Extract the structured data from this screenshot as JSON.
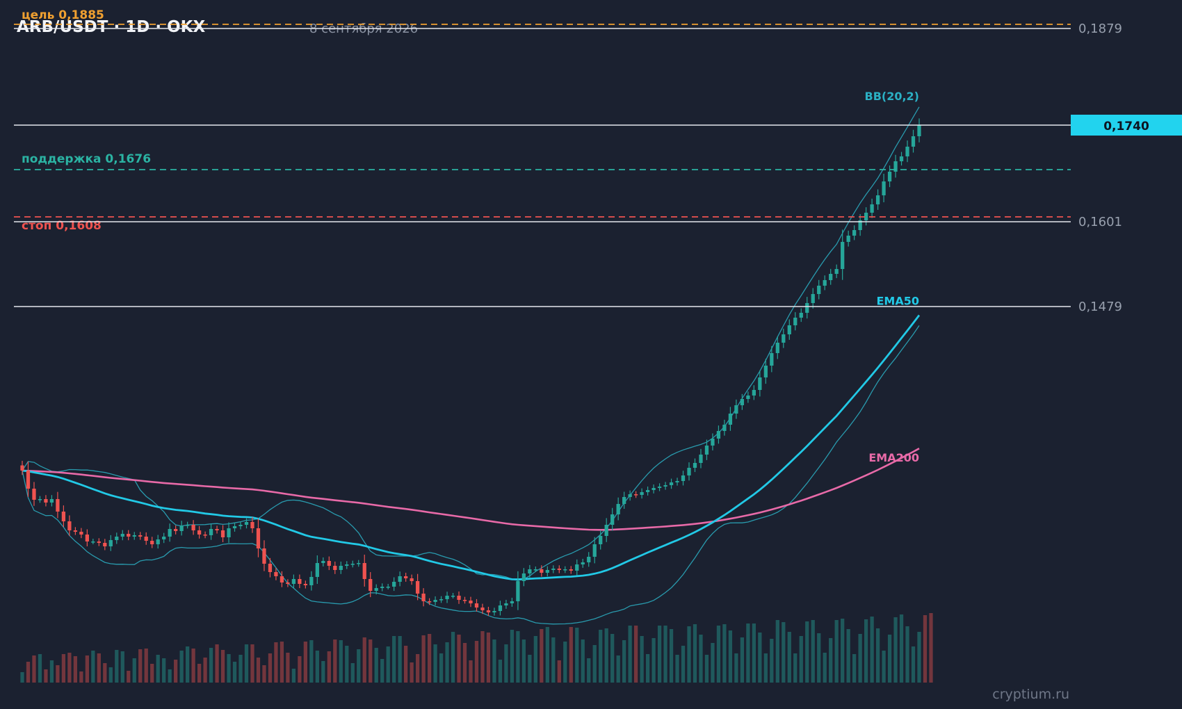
{
  "header": {
    "title": "ARB/USDT · 1D · OKX",
    "date": "8 сентября 2026"
  },
  "watermark": "cryptium.ru",
  "colors": {
    "background": "#1b2130",
    "up": "#26a69a",
    "down": "#ef5350",
    "ema50": "#22c9e6",
    "ema200": "#e86aa8",
    "bollinger": "#2bb0c4",
    "target": "#f0a030",
    "support": "#2bb3a3",
    "stop": "#ef5350",
    "level": "#e6e8ee",
    "price_tag_bg": "#22d3ee"
  },
  "chart_data": {
    "type": "candlestick",
    "price_axis": {
      "min": 0.102,
      "max": 0.19
    },
    "current_price": "0,1740",
    "axis_labels": [
      "0,1879",
      "0,1601",
      "0,1479"
    ],
    "levels": [
      {
        "kind": "target",
        "label": "цель 0,1885",
        "value": 0.1885
      },
      {
        "kind": "horizontal",
        "value": 0.1879,
        "label": "0,1879"
      },
      {
        "kind": "current",
        "value": 0.174
      },
      {
        "kind": "support",
        "label": "поддержка 0,1676",
        "value": 0.1676
      },
      {
        "kind": "stop",
        "label": "стоп 0,1608",
        "value": 0.1608
      },
      {
        "kind": "horizontal",
        "value": 0.1601,
        "label": "0,1601"
      },
      {
        "kind": "horizontal",
        "value": 0.1479,
        "label": "0,1479"
      }
    ],
    "indicators": {
      "bb": "BB(20,2)",
      "ema50": "EMA50",
      "ema200": "EMA200"
    },
    "closes": [
      0.1243,
      0.1217,
      0.1201,
      0.1202,
      0.1197,
      0.1202,
      0.1184,
      0.117,
      0.1157,
      0.1155,
      0.1151,
      0.1141,
      0.1141,
      0.1139,
      0.1134,
      0.1143,
      0.1148,
      0.1152,
      0.1148,
      0.115,
      0.1148,
      0.1142,
      0.1137,
      0.1144,
      0.1148,
      0.1159,
      0.1156,
      0.1164,
      0.1165,
      0.1157,
      0.1151,
      0.115,
      0.1159,
      0.1157,
      0.1147,
      0.116,
      0.1163,
      0.1165,
      0.1169,
      0.116,
      0.1131,
      0.1109,
      0.1097,
      0.1091,
      0.1082,
      0.108,
      0.1087,
      0.108,
      0.1078,
      0.109,
      0.111,
      0.1113,
      0.1106,
      0.11,
      0.1106,
      0.1108,
      0.1109,
      0.111,
      0.1087,
      0.107,
      0.1074,
      0.1076,
      0.1076,
      0.1083,
      0.1091,
      0.1088,
      0.1084,
      0.1066,
      0.1055,
      0.1054,
      0.1057,
      0.1058,
      0.1063,
      0.1063,
      0.1057,
      0.1056,
      0.1052,
      0.1046,
      0.1042,
      0.1039,
      0.1041,
      0.1049,
      0.1052,
      0.1055,
      0.1084,
      0.1095,
      0.1101,
      0.1101,
      0.1096,
      0.11,
      0.1102,
      0.11,
      0.1101,
      0.1099,
      0.1108,
      0.1111,
      0.1119,
      0.1137,
      0.1149,
      0.1165,
      0.118,
      0.1195,
      0.1205,
      0.1209,
      0.1208,
      0.1212,
      0.1215,
      0.1218,
      0.122,
      0.1222,
      0.1226,
      0.1228,
      0.1236,
      0.1247,
      0.1254,
      0.1266,
      0.1279,
      0.1289,
      0.13,
      0.1309,
      0.1325,
      0.1337,
      0.1346,
      0.1351,
      0.1359,
      0.1377,
      0.1394,
      0.1412,
      0.1427,
      0.1439,
      0.1452,
      0.1463,
      0.147,
      0.1484,
      0.1497,
      0.1509,
      0.1517,
      0.1526,
      0.1533,
      0.1572,
      0.1581,
      0.1589,
      0.1603,
      0.1614,
      0.1626,
      0.1639,
      0.1659,
      0.1673,
      0.1688,
      0.1695,
      0.1709,
      0.1724,
      0.174
    ],
    "volumes": [
      0.15,
      0.3,
      0.39,
      0.41,
      0.19,
      0.32,
      0.25,
      0.41,
      0.43,
      0.38,
      0.16,
      0.39,
      0.46,
      0.42,
      0.28,
      0.22,
      0.47,
      0.45,
      0.17,
      0.35,
      0.48,
      0.49,
      0.27,
      0.4,
      0.35,
      0.19,
      0.33,
      0.46,
      0.52,
      0.49,
      0.27,
      0.36,
      0.5,
      0.55,
      0.47,
      0.41,
      0.3,
      0.4,
      0.55,
      0.55,
      0.36,
      0.25,
      0.42,
      0.58,
      0.59,
      0.43,
      0.2,
      0.38,
      0.59,
      0.61,
      0.46,
      0.31,
      0.45,
      0.62,
      0.61,
      0.53,
      0.28,
      0.48,
      0.65,
      0.62,
      0.5,
      0.34,
      0.52,
      0.67,
      0.67,
      0.53,
      0.29,
      0.41,
      0.68,
      0.7,
      0.55,
      0.42,
      0.58,
      0.73,
      0.69,
      0.57,
      0.32,
      0.6,
      0.74,
      0.72,
      0.62,
      0.33,
      0.55,
      0.76,
      0.74,
      0.62,
      0.4,
      0.67,
      0.77,
      0.8,
      0.65,
      0.32,
      0.59,
      0.8,
      0.79,
      0.62,
      0.35,
      0.54,
      0.76,
      0.78,
      0.7,
      0.39,
      0.61,
      0.82,
      0.82,
      0.67,
      0.41,
      0.64,
      0.82,
      0.82,
      0.77,
      0.4,
      0.53,
      0.81,
      0.84,
      0.69,
      0.4,
      0.57,
      0.82,
      0.84,
      0.75,
      0.42,
      0.65,
      0.85,
      0.85,
      0.72,
      0.42,
      0.63,
      0.9,
      0.87,
      0.73,
      0.42,
      0.67,
      0.88,
      0.9,
      0.71,
      0.43,
      0.64,
      0.9,
      0.92,
      0.77,
      0.41,
      0.7,
      0.91,
      0.95,
      0.78,
      0.46,
      0.69,
      0.94,
      0.98,
      0.81,
      0.52,
      0.73,
      0.97,
      1.0
    ]
  }
}
